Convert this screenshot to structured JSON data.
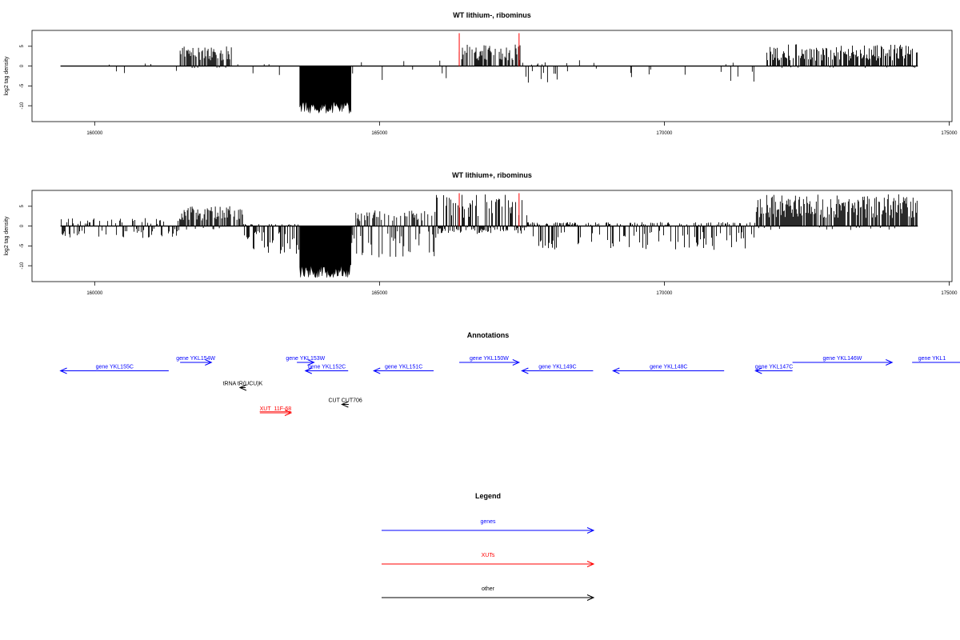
{
  "chart_data": [
    {
      "type": "bar",
      "title": "WT lithium-, ribominus",
      "ylabel": "log2 tag density",
      "xlim": [
        158900,
        175050
      ],
      "ylim": [
        -14,
        9
      ],
      "xticks": [
        160000,
        165000,
        170000,
        175000
      ],
      "yticks": [
        5,
        0,
        -5,
        -10
      ],
      "data_range": [
        159400,
        174450
      ],
      "signal_color": "#000000",
      "marker_color": "#ff0000",
      "markers": [
        {
          "x": 166400,
          "y": 8.3
        },
        {
          "x": 167450,
          "y": 8.3
        }
      ],
      "segments": [
        {
          "x": [
            159400,
            161500
          ],
          "low": -2.5,
          "high": 0.8,
          "density": 0.08
        },
        {
          "x": [
            161500,
            162400
          ],
          "low": -0.5,
          "high": 5.0,
          "density": 0.8
        },
        {
          "x": [
            162400,
            163600
          ],
          "low": -2.5,
          "high": 0.5,
          "density": 0.08
        },
        {
          "x": [
            163600,
            164500
          ],
          "low": -12.0,
          "high": -5.0,
          "density": 1.0,
          "fill": true
        },
        {
          "x": [
            164500,
            166400
          ],
          "low": -3.5,
          "high": 2.0,
          "density": 0.1
        },
        {
          "x": [
            166400,
            167500
          ],
          "low": -0.5,
          "high": 5.5,
          "density": 0.6
        },
        {
          "x": [
            167500,
            168300
          ],
          "low": -5.0,
          "high": 1.0,
          "density": 0.3
        },
        {
          "x": [
            168300,
            171800
          ],
          "low": -4.0,
          "high": 1.5,
          "density": 0.06
        },
        {
          "x": [
            171800,
            174450
          ],
          "low": -0.5,
          "high": 5.5,
          "density": 0.8
        }
      ]
    },
    {
      "type": "bar",
      "title": "WT lithium+, ribominus",
      "ylabel": "log2 tag density",
      "xlim": [
        158900,
        175050
      ],
      "ylim": [
        -14,
        9
      ],
      "xticks": [
        160000,
        165000,
        170000,
        175000
      ],
      "yticks": [
        5,
        0,
        -5,
        -10
      ],
      "data_range": [
        159400,
        174450
      ],
      "signal_color": "#000000",
      "marker_color": "#ff0000",
      "markers": [
        {
          "x": 166400,
          "y": 8.3
        },
        {
          "x": 167450,
          "y": 8.3
        }
      ],
      "segments": [
        {
          "x": [
            159400,
            161500
          ],
          "low": -3.0,
          "high": 2.0,
          "density": 0.5
        },
        {
          "x": [
            161500,
            162600
          ],
          "low": -1.0,
          "high": 5.0,
          "density": 0.8
        },
        {
          "x": [
            162600,
            163600
          ],
          "low": -7.0,
          "high": 0.5,
          "density": 0.8
        },
        {
          "x": [
            163600,
            164500
          ],
          "low": -13.0,
          "high": -5.0,
          "density": 1.0,
          "fill": true
        },
        {
          "x": [
            164500,
            166000
          ],
          "low": -8.0,
          "high": 4.0,
          "density": 0.8
        },
        {
          "x": [
            166000,
            167600
          ],
          "low": -2.0,
          "high": 8.0,
          "density": 0.9
        },
        {
          "x": [
            167600,
            171600
          ],
          "low": -6.0,
          "high": 1.0,
          "density": 0.6
        },
        {
          "x": [
            171600,
            174450
          ],
          "low": -1.0,
          "high": 8.0,
          "density": 0.9
        }
      ]
    }
  ],
  "annotations": {
    "title": "Annotations",
    "features": [
      {
        "label": "gene YKL155C",
        "type": "genes",
        "strand": "-",
        "start": 159400,
        "end": 161300,
        "row": 2
      },
      {
        "label": "gene YKL154W",
        "type": "genes",
        "strand": "+",
        "start": 161500,
        "end": 162050,
        "row": 1
      },
      {
        "label": "tRNA tR(UCU)K",
        "type": "other",
        "strand": "-",
        "start": 162550,
        "end": 162650,
        "row": 4
      },
      {
        "label": "gene YKL153W",
        "type": "genes",
        "strand": "+",
        "start": 163550,
        "end": 163850,
        "row": 1
      },
      {
        "label": "gene YKL152C",
        "type": "genes",
        "strand": "-",
        "start": 163700,
        "end": 164450,
        "row": 2
      },
      {
        "label": "XUT_11F-68",
        "type": "XUTs",
        "strand": "+",
        "start": 162900,
        "end": 163450,
        "row": 7
      },
      {
        "label": "CUT CUT706",
        "type": "other",
        "strand": "-",
        "start": 164340,
        "end": 164460,
        "row": 6
      },
      {
        "label": "gene YKL151C",
        "type": "genes",
        "strand": "-",
        "start": 164900,
        "end": 165950,
        "row": 2
      },
      {
        "label": "gene YKL150W",
        "type": "genes",
        "strand": "+",
        "start": 166400,
        "end": 167450,
        "row": 1
      },
      {
        "label": "gene YKL149C",
        "type": "genes",
        "strand": "-",
        "start": 167500,
        "end": 168750,
        "row": 2
      },
      {
        "label": "gene YKL148C",
        "type": "genes",
        "strand": "-",
        "start": 169100,
        "end": 171050,
        "row": 2
      },
      {
        "label": "gene YKL147C",
        "type": "genes",
        "strand": "-",
        "start": 171600,
        "end": 172250,
        "row": 2
      },
      {
        "label": "gene YKL146W",
        "type": "genes",
        "strand": "+",
        "start": 172250,
        "end": 174000,
        "row": 1
      },
      {
        "label": "gene YKL1",
        "type": "genes",
        "strand": "+",
        "start": 174350,
        "end": 175200,
        "row": 1
      }
    ]
  },
  "legend": {
    "title": "Legend",
    "items": [
      {
        "label": "genes",
        "color": "#0000ff"
      },
      {
        "label": "XUTs",
        "color": "#ff0000"
      },
      {
        "label": "other",
        "color": "#000000"
      }
    ]
  },
  "colors": {
    "genes": "#0000ff",
    "XUTs": "#ff0000",
    "other": "#000000"
  }
}
